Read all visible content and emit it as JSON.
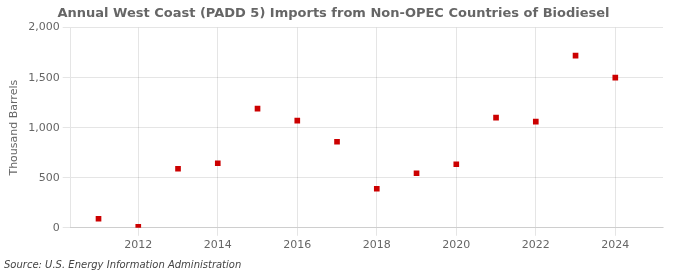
{
  "chart_data": {
    "type": "scatter",
    "title": "Annual West Coast (PADD 5) Imports from Non-OPEC Countries of Biodiesel",
    "ylabel": "Thousand Barrels",
    "source": "Source: U.S. Energy Information Administration",
    "x": [
      2011,
      2012,
      2013,
      2014,
      2015,
      2016,
      2017,
      2018,
      2019,
      2020,
      2021,
      2022,
      2023,
      2024
    ],
    "values": [
      90,
      10,
      590,
      645,
      1190,
      1070,
      860,
      390,
      545,
      635,
      1100,
      1060,
      1720,
      1500
    ],
    "color": "#cc0000",
    "marker": "square",
    "xlim": [
      2010.3,
      2025.2
    ],
    "xticks": [
      2012,
      2014,
      2016,
      2018,
      2020,
      2022,
      2024
    ],
    "ylim": [
      0,
      2000
    ],
    "yticks": [
      0,
      500,
      {
        "value": 1000,
        "label": "1,000"
      },
      {
        "value": 1500,
        "label": "1,500"
      },
      {
        "value": 2000,
        "label": "2,000"
      }
    ],
    "grid": true
  }
}
